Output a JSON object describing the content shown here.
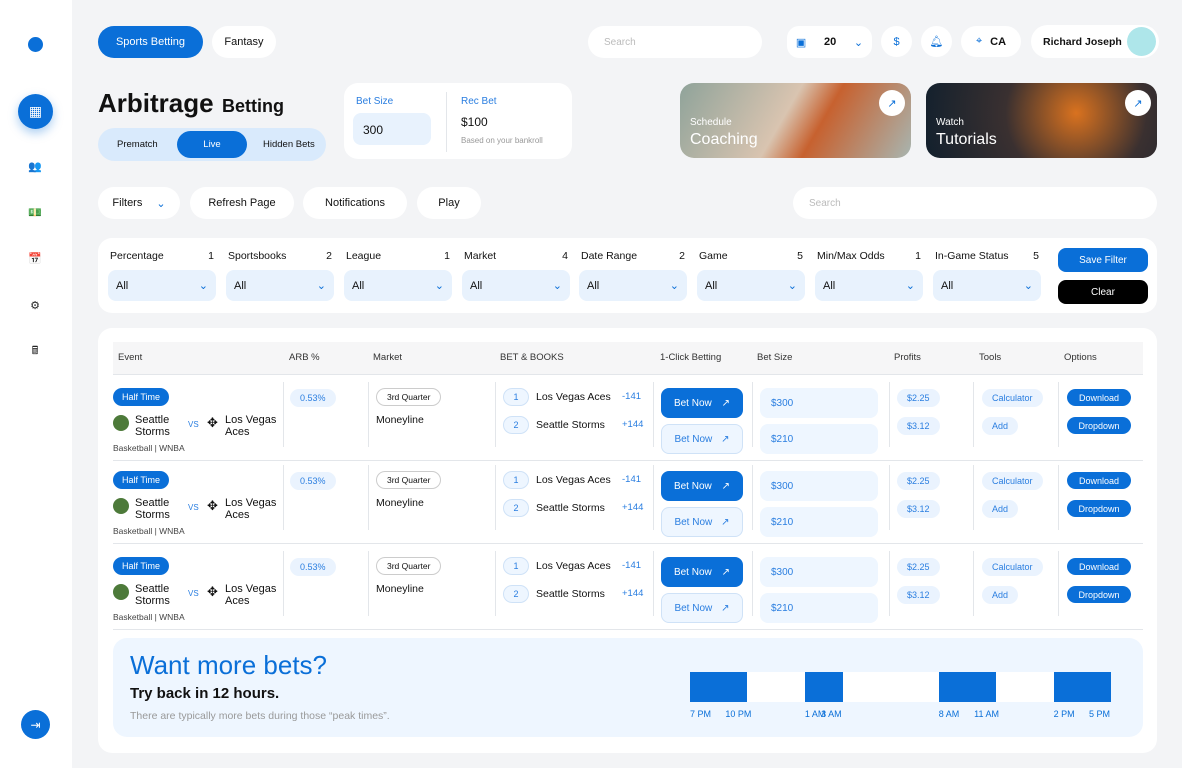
{
  "nav": {
    "tabs": [
      "Sports Betting",
      "Fantasy"
    ],
    "search_placeholder": "Search",
    "coins": "20",
    "location": "CA",
    "user": "Richard Joseph"
  },
  "header": {
    "title": "Arbitrage",
    "subtitle": "Betting",
    "modes": [
      "Prematch",
      "Live",
      "Hidden Bets"
    ],
    "active_mode": "Live"
  },
  "bet_box": {
    "bet_size_label": "Bet Size",
    "bet_size": "300",
    "rec_label": "Rec Bet",
    "rec_value": "$100",
    "rec_note": "Based on your bankroll"
  },
  "promos": [
    {
      "small": "Schedule",
      "big": "Coaching"
    },
    {
      "small": "Watch",
      "big": "Tutorials"
    }
  ],
  "actions": {
    "filters": "Filters",
    "refresh": "Refresh Page",
    "notifications": "Notifications",
    "play": "Play",
    "search_placeholder": "Search"
  },
  "filters": [
    {
      "label": "Percentage",
      "count": "1",
      "value": "All"
    },
    {
      "label": "Sportsbooks",
      "count": "2",
      "value": "All"
    },
    {
      "label": "League",
      "count": "1",
      "value": "All"
    },
    {
      "label": "Market",
      "count": "4",
      "value": "All"
    },
    {
      "label": "Date Range",
      "count": "2",
      "value": "All"
    },
    {
      "label": "Game",
      "count": "5",
      "value": "All"
    },
    {
      "label": "Min/Max Odds",
      "count": "1",
      "value": "All"
    },
    {
      "label": "In-Game Status",
      "count": "5",
      "value": "All"
    }
  ],
  "filter_buttons": {
    "save": "Save Filter",
    "clear": "Clear"
  },
  "table": {
    "headers": [
      "Event",
      "ARB %",
      "Market",
      "BET & BOOKS",
      "1-Click Betting",
      "Bet Size",
      "Profits",
      "Tools",
      "Options"
    ],
    "rows": [
      {
        "status": "Half Time",
        "team1": "Seattle Storms",
        "vs": "VS",
        "team2": "Los Vegas Aces",
        "league": "Basketball | WNBA",
        "arb": "0.53%",
        "period": "3rd Quarter",
        "market": "Moneyline",
        "books": [
          {
            "n": "1",
            "team": "Los Vegas Aces",
            "odds": "-141"
          },
          {
            "n": "2",
            "team": "Seattle Storms",
            "odds": "+144"
          }
        ],
        "bet": "Bet Now",
        "sizes": [
          "$300",
          "$210"
        ],
        "profits": [
          "$2.25",
          "$3.12"
        ],
        "tools": [
          "Calculator",
          "Add"
        ],
        "options": [
          "Download",
          "Dropdown"
        ]
      },
      {
        "status": "Half Time",
        "team1": "Seattle Storms",
        "vs": "VS",
        "team2": "Los Vegas Aces",
        "league": "Basketball | WNBA",
        "arb": "0.53%",
        "period": "3rd Quarter",
        "market": "Moneyline",
        "books": [
          {
            "n": "1",
            "team": "Los Vegas Aces",
            "odds": "-141"
          },
          {
            "n": "2",
            "team": "Seattle Storms",
            "odds": "+144"
          }
        ],
        "bet": "Bet Now",
        "sizes": [
          "$300",
          "$210"
        ],
        "profits": [
          "$2.25",
          "$3.12"
        ],
        "tools": [
          "Calculator",
          "Add"
        ],
        "options": [
          "Download",
          "Dropdown"
        ]
      },
      {
        "status": "Half Time",
        "team1": "Seattle Storms",
        "vs": "VS",
        "team2": "Los Vegas Aces",
        "league": "Basketball | WNBA",
        "arb": "0.53%",
        "period": "3rd Quarter",
        "market": "Moneyline",
        "books": [
          {
            "n": "1",
            "team": "Los Vegas Aces",
            "odds": "-141"
          },
          {
            "n": "2",
            "team": "Seattle Storms",
            "odds": "+144"
          }
        ],
        "bet": "Bet Now",
        "sizes": [
          "$300",
          "$210"
        ],
        "profits": [
          "$2.25",
          "$3.12"
        ],
        "tools": [
          "Calculator",
          "Add"
        ],
        "options": [
          "Download",
          "Dropdown"
        ]
      }
    ]
  },
  "peak": {
    "title": "Want more bets?",
    "subtitle": "Try back in 12 hours.",
    "note": "There are typically more bets during those “peak times”.",
    "windows": [
      [
        "7 PM",
        "10 PM"
      ],
      [
        "1 AM",
        "3 AM"
      ],
      [
        "8 AM",
        "11 AM"
      ],
      [
        "2 PM",
        "5 PM"
      ]
    ]
  },
  "colors": {
    "accent": "#0a6fd8",
    "light": "#e8f2fd"
  }
}
